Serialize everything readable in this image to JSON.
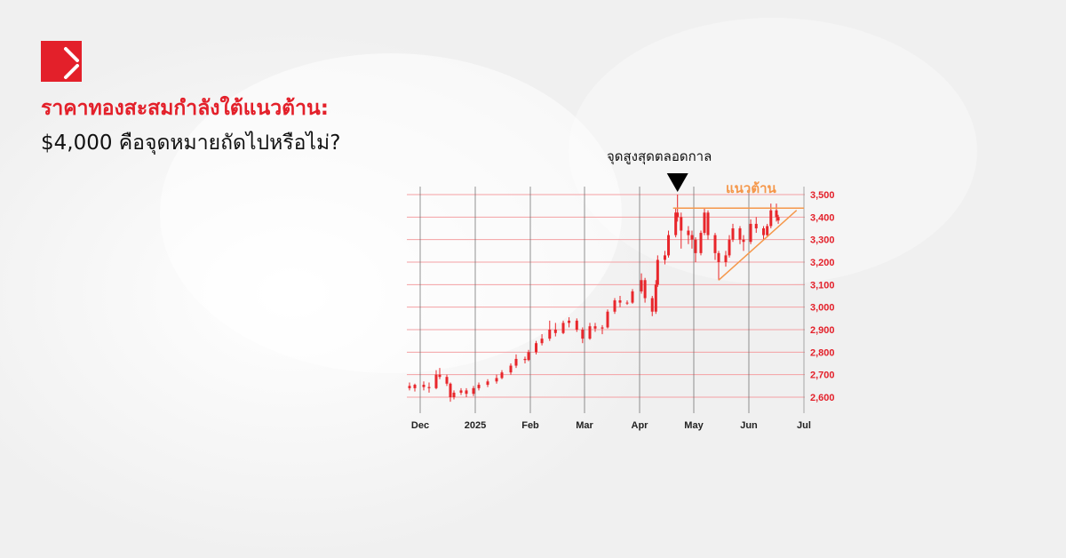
{
  "brand": {
    "logo": "red-square-logo",
    "accent": "#e3202a"
  },
  "headline": {
    "line1": "ราคาทองสะสมกำลังใต้แนวต้าน:",
    "line2": "$4,000 คือจุดหมายถัดไปหรือไม่?"
  },
  "chart_data": {
    "type": "candlestick",
    "title": "",
    "xlabel": "",
    "ylabel": "",
    "x_ticks": [
      "Dec",
      "2025",
      "Feb",
      "Mar",
      "Apr",
      "May",
      "Jun",
      "Jul"
    ],
    "y_ticks": [
      "2,600",
      "2,700",
      "2,800",
      "2,900",
      "3,000",
      "3,100",
      "3,200",
      "3,300",
      "3,400",
      "3,500"
    ],
    "ylim": [
      2600,
      3500
    ],
    "xlim": [
      "2024-11-25",
      "2025-07-01"
    ],
    "grid": true,
    "candle_color": "#e8262b",
    "annotation_color": "#f5974a",
    "columns": [
      "date",
      "open",
      "high",
      "low",
      "close"
    ],
    "candles": [
      [
        "2024-11-25",
        2650,
        2665,
        2630,
        2640
      ],
      [
        "2024-11-28",
        2640,
        2660,
        2625,
        2655
      ],
      [
        "2024-12-03",
        2655,
        2670,
        2630,
        2645
      ],
      [
        "2024-12-06",
        2645,
        2665,
        2620,
        2640
      ],
      [
        "2024-12-10",
        2640,
        2720,
        2635,
        2700
      ],
      [
        "2024-12-12",
        2700,
        2730,
        2680,
        2690
      ],
      [
        "2024-12-16",
        2690,
        2700,
        2650,
        2660
      ],
      [
        "2024-12-18",
        2660,
        2665,
        2580,
        2600
      ],
      [
        "2024-12-20",
        2600,
        2630,
        2590,
        2620
      ],
      [
        "2024-12-24",
        2620,
        2640,
        2610,
        2630
      ],
      [
        "2024-12-27",
        2630,
        2640,
        2600,
        2615
      ],
      [
        "2024-12-31",
        2615,
        2650,
        2605,
        2640
      ],
      [
        "2025-01-03",
        2640,
        2665,
        2630,
        2655
      ],
      [
        "2025-01-08",
        2655,
        2680,
        2645,
        2670
      ],
      [
        "2025-01-13",
        2670,
        2700,
        2660,
        2685
      ],
      [
        "2025-01-16",
        2685,
        2720,
        2680,
        2710
      ],
      [
        "2025-01-21",
        2710,
        2750,
        2700,
        2740
      ],
      [
        "2025-01-24",
        2740,
        2790,
        2730,
        2770
      ],
      [
        "2025-01-29",
        2770,
        2780,
        2750,
        2765
      ],
      [
        "2025-01-31",
        2765,
        2810,
        2760,
        2800
      ],
      [
        "2025-02-04",
        2800,
        2850,
        2790,
        2840
      ],
      [
        "2025-02-07",
        2840,
        2880,
        2830,
        2860
      ],
      [
        "2025-02-11",
        2860,
        2940,
        2850,
        2900
      ],
      [
        "2025-02-14",
        2900,
        2930,
        2870,
        2885
      ],
      [
        "2025-02-18",
        2885,
        2940,
        2880,
        2930
      ],
      [
        "2025-02-21",
        2930,
        2955,
        2910,
        2940
      ],
      [
        "2025-02-25",
        2940,
        2950,
        2890,
        2900
      ],
      [
        "2025-02-28",
        2900,
        2910,
        2840,
        2860
      ],
      [
        "2025-03-04",
        2860,
        2930,
        2855,
        2915
      ],
      [
        "2025-03-07",
        2915,
        2930,
        2890,
        2905
      ],
      [
        "2025-03-11",
        2905,
        2920,
        2880,
        2910
      ],
      [
        "2025-03-14",
        2910,
        2990,
        2905,
        2980
      ],
      [
        "2025-03-18",
        2980,
        3040,
        2970,
        3030
      ],
      [
        "2025-03-21",
        3030,
        3050,
        3000,
        3020
      ],
      [
        "2025-03-25",
        3020,
        3030,
        3010,
        3020
      ],
      [
        "2025-03-28",
        3020,
        3080,
        3015,
        3070
      ],
      [
        "2025-04-02",
        3070,
        3150,
        3060,
        3120
      ],
      [
        "2025-04-04",
        3120,
        3130,
        3020,
        3040
      ],
      [
        "2025-04-08",
        3040,
        3050,
        2960,
        2980
      ],
      [
        "2025-04-10",
        2980,
        3120,
        2970,
        3100
      ],
      [
        "2025-04-11",
        3100,
        3230,
        3090,
        3210
      ],
      [
        "2025-04-15",
        3210,
        3250,
        3190,
        3230
      ],
      [
        "2025-04-17",
        3230,
        3340,
        3220,
        3320
      ],
      [
        "2025-04-21",
        3320,
        3440,
        3310,
        3420
      ],
      [
        "2025-04-22",
        3420,
        3500,
        3380,
        3400
      ],
      [
        "2025-04-24",
        3400,
        3420,
        3260,
        3340
      ],
      [
        "2025-04-28",
        3340,
        3360,
        3280,
        3320
      ],
      [
        "2025-04-30",
        3320,
        3340,
        3260,
        3300
      ],
      [
        "2025-05-02",
        3300,
        3310,
        3200,
        3240
      ],
      [
        "2025-05-05",
        3240,
        3340,
        3230,
        3330
      ],
      [
        "2025-05-07",
        3330,
        3440,
        3320,
        3420
      ],
      [
        "2025-05-09",
        3420,
        3430,
        3300,
        3320
      ],
      [
        "2025-05-13",
        3320,
        3330,
        3210,
        3240
      ],
      [
        "2025-05-15",
        3240,
        3250,
        3120,
        3200
      ],
      [
        "2025-05-19",
        3200,
        3250,
        3180,
        3230
      ],
      [
        "2025-05-21",
        3230,
        3320,
        3220,
        3300
      ],
      [
        "2025-05-23",
        3300,
        3370,
        3290,
        3350
      ],
      [
        "2025-05-27",
        3350,
        3360,
        3280,
        3300
      ],
      [
        "2025-05-29",
        3300,
        3320,
        3250,
        3290
      ],
      [
        "2025-06-02",
        3290,
        3390,
        3280,
        3370
      ],
      [
        "2025-06-05",
        3370,
        3400,
        3330,
        3350
      ],
      [
        "2025-06-09",
        3350,
        3360,
        3300,
        3320
      ],
      [
        "2025-06-11",
        3320,
        3370,
        3310,
        3360
      ],
      [
        "2025-06-13",
        3360,
        3460,
        3350,
        3430
      ],
      [
        "2025-06-16",
        3430,
        3460,
        3380,
        3400
      ],
      [
        "2025-06-17",
        3400,
        3410,
        3370,
        3385
      ]
    ],
    "annotations": {
      "all_time_high": {
        "label": "จุดสูงสุดตลอดกาล",
        "date": "2025-04-22",
        "marker": "down-triangle"
      },
      "resistance": {
        "label": "แนวต้าน",
        "value": 3440,
        "from": "2025-04-21",
        "to": "2025-07-01"
      },
      "trendline": {
        "from": [
          "2025-05-15",
          3120
        ],
        "to": [
          "2025-06-27",
          3430
        ]
      }
    }
  }
}
